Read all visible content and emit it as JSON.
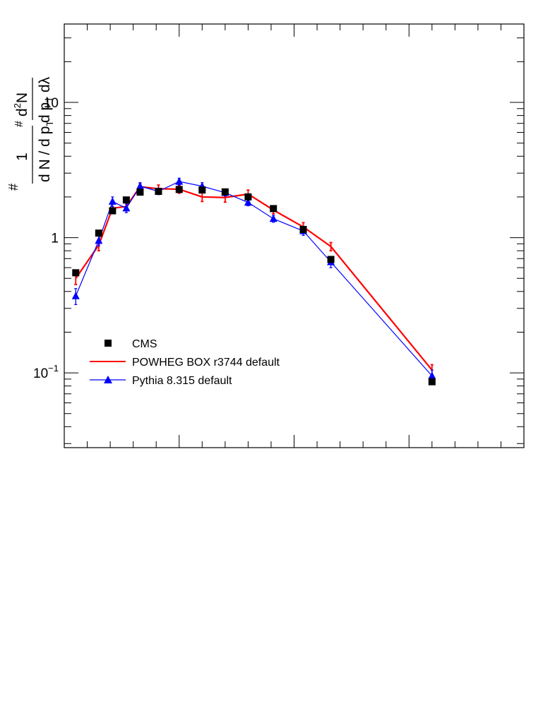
{
  "chart_data": {
    "type": "line",
    "title": "",
    "xlabel": "",
    "ylabel": {
      "hash_top": "#",
      "numerator_factor": "1",
      "denominator_factor": "d N / d p",
      "denominator_sub": "T",
      "hash_mid": "#",
      "numerator_main": "d",
      "numerator_sup": "2",
      "numerator_main_end": "N",
      "denominator_main": "d p",
      "denominator_main_sub": "T",
      "denominator_main_end": " dλ"
    },
    "y_scale": "log",
    "ylim": [
      0.028,
      38
    ],
    "xlim": [
      0.0,
      1.0
    ],
    "y_tick_labels": [
      {
        "value": 0.1,
        "base": "10",
        "exp": "−1"
      },
      {
        "value": 1,
        "base": "1",
        "exp": ""
      },
      {
        "value": 10,
        "base": "10",
        "exp": ""
      }
    ],
    "grid": false,
    "legend_position": "bottom-left",
    "series": [
      {
        "name": "CMS",
        "style": "markers",
        "marker": "square",
        "color": "#000000",
        "points": [
          {
            "x": 0.025,
            "y": 0.55,
            "err": 0.02
          },
          {
            "x": 0.075,
            "y": 1.08,
            "err": 0.04
          },
          {
            "x": 0.105,
            "y": 1.58,
            "err": 0.05
          },
          {
            "x": 0.135,
            "y": 1.9,
            "err": 0.05
          },
          {
            "x": 0.165,
            "y": 2.17,
            "err": 0.05
          },
          {
            "x": 0.205,
            "y": 2.2,
            "err": 0.05
          },
          {
            "x": 0.25,
            "y": 2.27,
            "err": 0.05
          },
          {
            "x": 0.3,
            "y": 2.25,
            "err": 0.05
          },
          {
            "x": 0.35,
            "y": 2.18,
            "err": 0.05
          },
          {
            "x": 0.4,
            "y": 2.0,
            "err": 0.05
          },
          {
            "x": 0.455,
            "y": 1.64,
            "err": 0.05
          },
          {
            "x": 0.52,
            "y": 1.15,
            "err": 0.04
          },
          {
            "x": 0.58,
            "y": 0.69,
            "err": 0.03
          },
          {
            "x": 0.8,
            "y": 0.086,
            "err": 0.003
          }
        ]
      },
      {
        "name": "POWHEG BOX r3744 default",
        "style": "line",
        "color": "#ff0000",
        "points": [
          {
            "x": 0.025,
            "y": 0.5,
            "err": 0.05
          },
          {
            "x": 0.075,
            "y": 0.88,
            "err": 0.08
          },
          {
            "x": 0.105,
            "y": 1.65,
            "err": 0.12
          },
          {
            "x": 0.135,
            "y": 1.7,
            "err": 0.12
          },
          {
            "x": 0.165,
            "y": 2.38,
            "err": 0.15
          },
          {
            "x": 0.205,
            "y": 2.3,
            "err": 0.15
          },
          {
            "x": 0.25,
            "y": 2.28,
            "err": 0.15
          },
          {
            "x": 0.3,
            "y": 2.0,
            "err": 0.15
          },
          {
            "x": 0.35,
            "y": 1.98,
            "err": 0.15
          },
          {
            "x": 0.4,
            "y": 2.1,
            "err": 0.15
          },
          {
            "x": 0.455,
            "y": 1.6,
            "err": 0.1
          },
          {
            "x": 0.52,
            "y": 1.2,
            "err": 0.09
          },
          {
            "x": 0.58,
            "y": 0.86,
            "err": 0.06
          },
          {
            "x": 0.8,
            "y": 0.105,
            "err": 0.01
          }
        ]
      },
      {
        "name": "Pythia 8.315 default",
        "style": "line+markers",
        "marker": "triangle",
        "color": "#0000ff",
        "points": [
          {
            "x": 0.025,
            "y": 0.37,
            "err": 0.05
          },
          {
            "x": 0.075,
            "y": 0.95,
            "err": 0.08
          },
          {
            "x": 0.105,
            "y": 1.85,
            "err": 0.15
          },
          {
            "x": 0.135,
            "y": 1.65,
            "err": 0.12
          },
          {
            "x": 0.165,
            "y": 2.4,
            "err": 0.15
          },
          {
            "x": 0.205,
            "y": 2.2,
            "err": 0.12
          },
          {
            "x": 0.25,
            "y": 2.6,
            "err": 0.15
          },
          {
            "x": 0.3,
            "y": 2.4,
            "err": 0.15
          },
          {
            "x": 0.35,
            "y": 2.15,
            "err": 0.12
          },
          {
            "x": 0.4,
            "y": 1.82,
            "err": 0.1
          },
          {
            "x": 0.455,
            "y": 1.38,
            "err": 0.08
          },
          {
            "x": 0.52,
            "y": 1.12,
            "err": 0.08
          },
          {
            "x": 0.58,
            "y": 0.66,
            "err": 0.06
          },
          {
            "x": 0.8,
            "y": 0.095,
            "err": 0.01
          }
        ]
      }
    ]
  }
}
